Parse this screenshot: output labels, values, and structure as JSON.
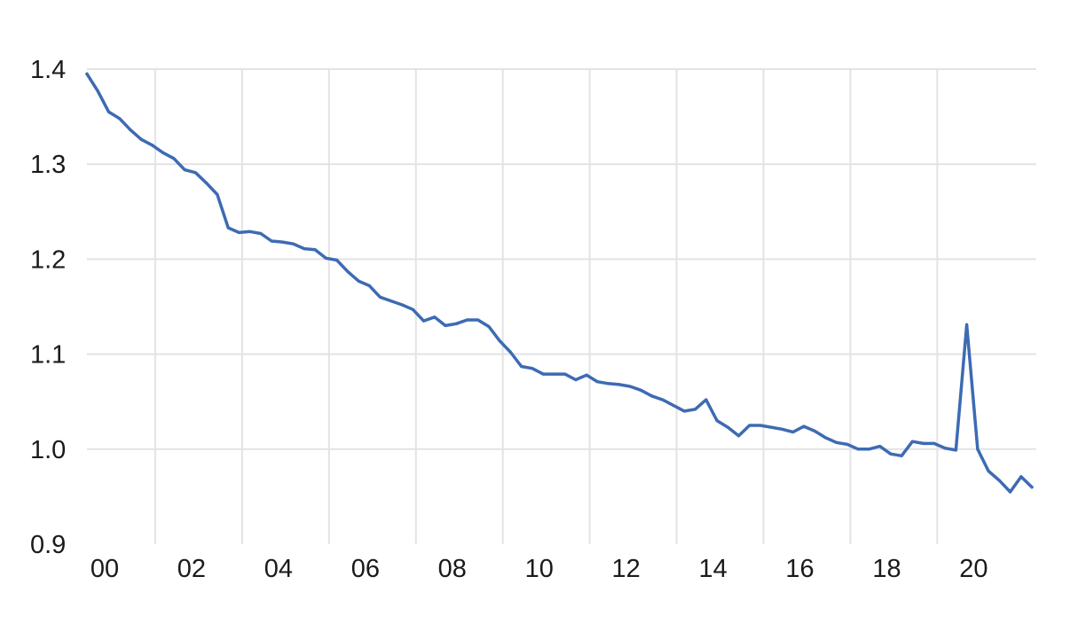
{
  "chart_data": {
    "type": "line",
    "title": "",
    "xlabel": "",
    "ylabel": "",
    "grid": true,
    "legend": "none",
    "xlim": [
      2000.0,
      2021.85
    ],
    "ylim": [
      0.9,
      1.4
    ],
    "x_ticks": [
      {
        "value": 2000,
        "label": "00"
      },
      {
        "value": 2002,
        "label": "02"
      },
      {
        "value": 2004,
        "label": "04"
      },
      {
        "value": 2006,
        "label": "06"
      },
      {
        "value": 2008,
        "label": "08"
      },
      {
        "value": 2010,
        "label": "10"
      },
      {
        "value": 2012,
        "label": "12"
      },
      {
        "value": 2014,
        "label": "14"
      },
      {
        "value": 2016,
        "label": "16"
      },
      {
        "value": 2018,
        "label": "18"
      },
      {
        "value": 2020,
        "label": "20"
      }
    ],
    "y_ticks": [
      {
        "value": 0.9,
        "label": "0.9"
      },
      {
        "value": 1.0,
        "label": "1.0"
      },
      {
        "value": 1.1,
        "label": "1.1"
      },
      {
        "value": 1.2,
        "label": "1.2"
      },
      {
        "value": 1.3,
        "label": "1.3"
      },
      {
        "value": 1.4,
        "label": "1.4"
      }
    ],
    "series": [
      {
        "color": "#3d6bb3",
        "x": [
          2000.0,
          2000.25,
          2000.5,
          2000.75,
          2001.0,
          2001.25,
          2001.5,
          2001.75,
          2002.0,
          2002.25,
          2002.5,
          2002.75,
          2003.0,
          2003.25,
          2003.5,
          2003.75,
          2004.0,
          2004.25,
          2004.5,
          2004.75,
          2005.0,
          2005.25,
          2005.5,
          2005.75,
          2006.0,
          2006.25,
          2006.5,
          2006.75,
          2007.0,
          2007.25,
          2007.5,
          2007.75,
          2008.0,
          2008.25,
          2008.5,
          2008.75,
          2009.0,
          2009.25,
          2009.5,
          2009.75,
          2010.0,
          2010.25,
          2010.5,
          2010.75,
          2011.0,
          2011.25,
          2011.5,
          2011.75,
          2012.0,
          2012.25,
          2012.5,
          2012.75,
          2013.0,
          2013.25,
          2013.5,
          2013.75,
          2014.0,
          2014.25,
          2014.5,
          2014.75,
          2015.0,
          2015.25,
          2015.5,
          2015.75,
          2016.0,
          2016.25,
          2016.5,
          2016.75,
          2017.0,
          2017.25,
          2017.5,
          2017.75,
          2018.0,
          2018.25,
          2018.5,
          2018.75,
          2019.0,
          2019.25,
          2019.5,
          2019.75,
          2020.0,
          2020.25,
          2020.5,
          2020.75,
          2021.0,
          2021.25,
          2021.5,
          2021.75
        ],
        "values": [
          1.395,
          1.377,
          1.355,
          1.348,
          1.336,
          1.326,
          1.32,
          1.312,
          1.306,
          1.294,
          1.291,
          1.28,
          1.268,
          1.233,
          1.228,
          1.229,
          1.227,
          1.219,
          1.218,
          1.216,
          1.211,
          1.21,
          1.201,
          1.199,
          1.187,
          1.177,
          1.172,
          1.16,
          1.156,
          1.152,
          1.147,
          1.135,
          1.139,
          1.13,
          1.132,
          1.136,
          1.136,
          1.129,
          1.114,
          1.102,
          1.087,
          1.085,
          1.079,
          1.079,
          1.079,
          1.073,
          1.078,
          1.071,
          1.069,
          1.068,
          1.066,
          1.062,
          1.056,
          1.052,
          1.046,
          1.04,
          1.042,
          1.052,
          1.03,
          1.023,
          1.014,
          1.025,
          1.025,
          1.023,
          1.021,
          1.018,
          1.024,
          1.019,
          1.012,
          1.007,
          1.005,
          1.0,
          1.0,
          1.003,
          0.995,
          0.993,
          1.008,
          1.006,
          1.006,
          1.001,
          0.999,
          1.131,
          1.0,
          0.977,
          0.967,
          0.955,
          0.971,
          0.96
        ]
      }
    ]
  }
}
